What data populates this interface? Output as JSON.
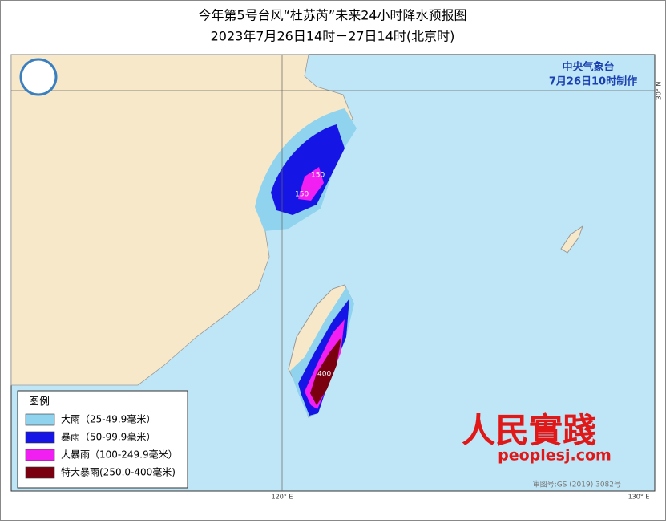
{
  "title": "今年第5号台风“杜苏芮”未来24小时降水预报图",
  "subtitle": "2023年7月26日14时－27日14时(北京时)",
  "agency": "中央气象台",
  "issued": "7月26日10时制作",
  "legend": {
    "title": "图例",
    "items": [
      {
        "label": "大雨（25-49.9毫米）",
        "color": "#8fd3ee"
      },
      {
        "label": "暴雨（50-99.9毫米）",
        "color": "#1515e6"
      },
      {
        "label": "大暴雨（100-249.9毫米）",
        "color": "#f21ff2"
      },
      {
        "label": "特大暴雨(250.0-400毫米)",
        "color": "#7a0010"
      }
    ]
  },
  "contour_labels": [
    "150",
    "150",
    "400"
  ],
  "grid_labels": {
    "lat": "30° N",
    "lon_west": "120° E",
    "lon_east": "130° E"
  },
  "watermark": {
    "logo": "人民實踐",
    "url": "peoplesj.com"
  },
  "approval": "审图号:GS (2019) 3082号"
}
